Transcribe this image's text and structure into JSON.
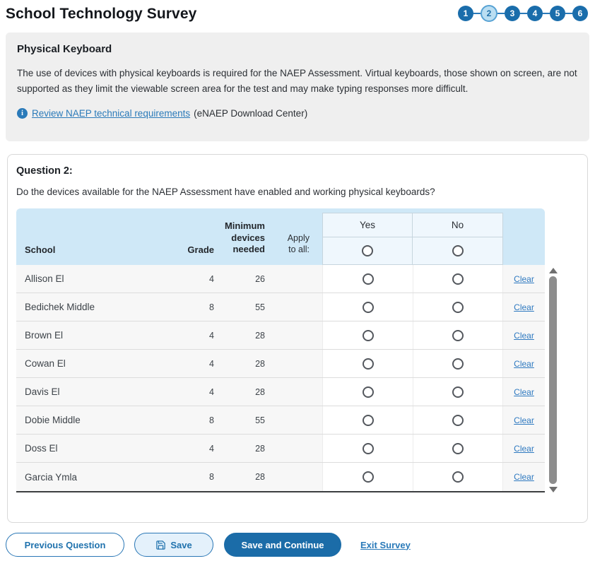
{
  "page": {
    "title": "School Technology Survey"
  },
  "stepper": {
    "steps": [
      "1",
      "2",
      "3",
      "4",
      "5",
      "6"
    ],
    "active_step": "2",
    "active_index": 1
  },
  "intro": {
    "heading": "Physical Keyboard",
    "body": "The use of devices with physical keyboards is required for the NAEP Assessment. Virtual keyboards, those shown on screen, are not supported as they limit the viewable screen area for the test and may make typing responses more difficult.",
    "info_icon": "info-icon",
    "link_text": "Review NAEP technical requirements",
    "link_suffix": "(eNAEP Download Center)"
  },
  "question": {
    "label": "Question 2:",
    "text": "Do the devices available for the NAEP Assessment have enabled and working physical keyboards?"
  },
  "table": {
    "headers": {
      "school": "School",
      "grade": "Grade",
      "devices_lines": [
        "Minimum",
        "devices",
        "needed"
      ],
      "apply_lines": [
        "Apply",
        "to all:"
      ],
      "yes": "Yes",
      "no": "No"
    },
    "clear_label": "Clear",
    "rows": [
      {
        "school": "Allison El",
        "grade": "4",
        "devices": "26"
      },
      {
        "school": "Bedichek Middle",
        "grade": "8",
        "devices": "55"
      },
      {
        "school": "Brown El",
        "grade": "4",
        "devices": "28"
      },
      {
        "school": "Cowan El",
        "grade": "4",
        "devices": "28"
      },
      {
        "school": "Davis El",
        "grade": "4",
        "devices": "28"
      },
      {
        "school": "Dobie Middle",
        "grade": "8",
        "devices": "55"
      },
      {
        "school": "Doss El",
        "grade": "4",
        "devices": "28"
      },
      {
        "school": "Garcia Ymla",
        "grade": "8",
        "devices": "28"
      }
    ]
  },
  "footer": {
    "previous_label": "Previous Question",
    "save_label": "Save",
    "save_continue_label": "Save and Continue",
    "exit_label": "Exit Survey"
  },
  "colors": {
    "primary_blue": "#1a6dab",
    "link_blue": "#2a7ab9",
    "step_active_fill": "#badef2",
    "step_active_border": "#57a2d4",
    "panel_gray": "#efefef",
    "table_header_blue": "#cfe8f7",
    "yes_no_box_blue": "#eff7fd",
    "row_gray": "#f7f7f7"
  }
}
